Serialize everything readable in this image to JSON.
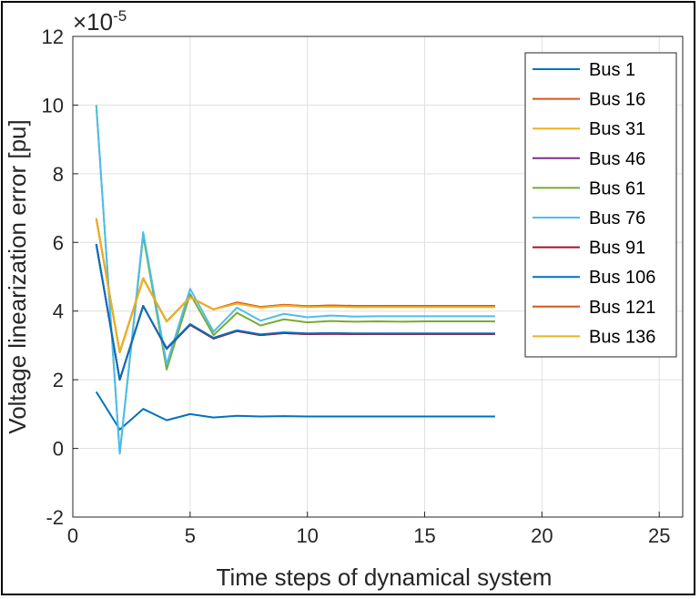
{
  "chart_data": {
    "type": "line",
    "title": "",
    "xlabel": "Time steps of dynamical system",
    "ylabel": "Voltage linearization error [pu]",
    "exponent_label": "×10",
    "exponent_power": "-5",
    "xlim": [
      0,
      26
    ],
    "ylim": [
      -2,
      12
    ],
    "xticks": [
      0,
      5,
      10,
      15,
      20,
      25
    ],
    "yticks": [
      -2,
      0,
      2,
      4,
      6,
      8,
      10,
      12
    ],
    "grid": true,
    "legend_position": "top-right",
    "x": [
      1,
      2,
      3,
      4,
      5,
      6,
      7,
      8,
      9,
      10,
      11,
      12,
      13,
      14,
      15,
      16,
      17,
      18
    ],
    "series": [
      {
        "name": "Bus 1",
        "color": "#0072BD",
        "values": [
          1.65,
          0.55,
          1.15,
          0.82,
          1.0,
          0.9,
          0.95,
          0.93,
          0.94,
          0.93,
          0.93,
          0.93,
          0.93,
          0.93,
          0.93,
          0.93,
          0.93,
          0.93
        ]
      },
      {
        "name": "Bus 16",
        "color": "#D95319",
        "values": [
          6.7,
          2.8,
          4.95,
          3.7,
          4.4,
          4.05,
          4.25,
          4.12,
          4.18,
          4.14,
          4.16,
          4.15,
          4.15,
          4.15,
          4.15,
          4.15,
          4.15,
          4.15
        ]
      },
      {
        "name": "Bus 31",
        "color": "#EDB120",
        "values": [
          6.7,
          2.8,
          4.95,
          3.7,
          4.4,
          4.05,
          4.22,
          4.1,
          4.16,
          4.12,
          4.13,
          4.12,
          4.12,
          4.12,
          4.12,
          4.12,
          4.12,
          4.12
        ]
      },
      {
        "name": "Bus 46",
        "color": "#7E2F8E",
        "values": [
          5.95,
          2.0,
          4.15,
          2.9,
          3.6,
          3.2,
          3.42,
          3.3,
          3.36,
          3.33,
          3.34,
          3.33,
          3.33,
          3.33,
          3.33,
          3.33,
          3.33,
          3.33
        ]
      },
      {
        "name": "Bus 61",
        "color": "#77AC30",
        "values": [
          10.0,
          -0.15,
          6.2,
          2.3,
          4.5,
          3.3,
          3.95,
          3.58,
          3.76,
          3.67,
          3.71,
          3.69,
          3.7,
          3.69,
          3.7,
          3.7,
          3.7,
          3.7
        ]
      },
      {
        "name": "Bus 76",
        "color": "#4DBEEE",
        "values": [
          10.0,
          -0.15,
          6.3,
          2.45,
          4.65,
          3.4,
          4.1,
          3.72,
          3.92,
          3.82,
          3.87,
          3.84,
          3.85,
          3.85,
          3.85,
          3.85,
          3.85,
          3.85
        ]
      },
      {
        "name": "Bus 91",
        "color": "#A2142F",
        "values": [
          5.95,
          2.0,
          4.15,
          2.9,
          3.6,
          3.2,
          3.42,
          3.3,
          3.36,
          3.33,
          3.34,
          3.33,
          3.33,
          3.33,
          3.33,
          3.33,
          3.33,
          3.33
        ]
      },
      {
        "name": "Bus 106",
        "color": "#0072BD",
        "values": [
          5.95,
          2.0,
          4.15,
          2.92,
          3.62,
          3.22,
          3.44,
          3.32,
          3.38,
          3.35,
          3.36,
          3.35,
          3.35,
          3.35,
          3.35,
          3.35,
          3.35,
          3.35
        ]
      },
      {
        "name": "Bus 121",
        "color": "#D95319",
        "values": [
          6.7,
          2.8,
          4.95,
          3.7,
          4.4,
          4.05,
          4.25,
          4.12,
          4.18,
          4.14,
          4.16,
          4.15,
          4.15,
          4.15,
          4.15,
          4.15,
          4.15,
          4.15
        ]
      },
      {
        "name": "Bus 136",
        "color": "#EDB120",
        "values": [
          6.7,
          2.8,
          4.95,
          3.7,
          4.4,
          4.05,
          4.22,
          4.1,
          4.16,
          4.12,
          4.13,
          4.12,
          4.12,
          4.12,
          4.12,
          4.12,
          4.12,
          4.12
        ]
      }
    ]
  }
}
